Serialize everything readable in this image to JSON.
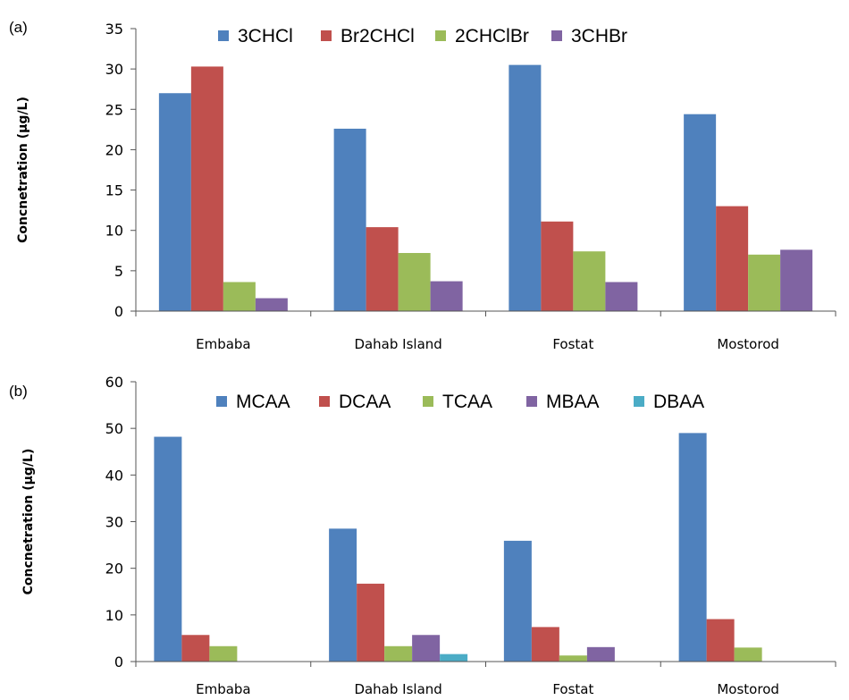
{
  "chart_data": [
    {
      "panel_label": "(a)",
      "type": "bar",
      "categories": [
        "Embaba",
        "Dahab Island",
        "Fostat",
        "Mostorod"
      ],
      "series": [
        {
          "name": "3CHCl",
          "color": "#4F81BD",
          "values": [
            27.0,
            22.6,
            30.5,
            24.4
          ]
        },
        {
          "name": "Br2CHCl",
          "color": "#C0504D",
          "values": [
            30.3,
            10.4,
            11.1,
            13.0
          ]
        },
        {
          "name": "2CHClBr",
          "color": "#9BBB59",
          "values": [
            3.6,
            7.2,
            7.4,
            7.0
          ]
        },
        {
          "name": "3CHBr",
          "color": "#8064A2",
          "values": [
            1.6,
            3.7,
            3.6,
            7.6
          ]
        }
      ],
      "ylabel": "Concnetration (µg/L)",
      "ylim": [
        0,
        35
      ],
      "yticks": [
        0,
        5,
        10,
        15,
        20,
        25,
        30,
        35
      ],
      "legend": "top",
      "grid": false
    },
    {
      "panel_label": "(b)",
      "type": "bar",
      "categories": [
        "Embaba",
        "Dahab Island",
        "Fostat",
        "Mostorod"
      ],
      "series": [
        {
          "name": "MCAA",
          "color": "#4F81BD",
          "values": [
            48.2,
            28.5,
            25.9,
            49.0
          ]
        },
        {
          "name": "DCAA",
          "color": "#C0504D",
          "values": [
            5.7,
            16.7,
            7.4,
            9.1
          ]
        },
        {
          "name": "TCAA",
          "color": "#9BBB59",
          "values": [
            3.3,
            3.3,
            1.3,
            3.0
          ]
        },
        {
          "name": "MBAA",
          "color": "#8064A2",
          "values": [
            0,
            5.7,
            3.1,
            0
          ]
        },
        {
          "name": "DBAA",
          "color": "#4BACC6",
          "values": [
            0,
            1.6,
            0,
            0
          ]
        }
      ],
      "ylabel": "Concnetration (µg/L)",
      "ylim": [
        0,
        60
      ],
      "yticks": [
        0,
        10,
        20,
        30,
        40,
        50,
        60
      ],
      "legend": "top",
      "grid": false
    }
  ]
}
